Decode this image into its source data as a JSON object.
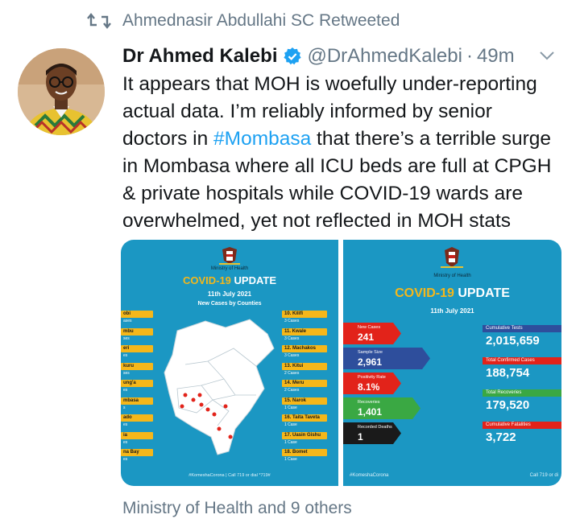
{
  "retweet": {
    "text": "Ahmednasir Abdullahi SC Retweeted"
  },
  "tweet": {
    "author_name": "Dr Ahmed Kalebi",
    "handle": "@DrAhmedKalebi",
    "separator": "·",
    "time": "49m",
    "lines": [
      "It appears that MOH is woefully under-reporting",
      "actual data. I’m reliably informed by senior",
      "in Mombasa where all ICU beds are full at CPGH",
      "& private hospitals while COVID-19 wards are",
      "overwhelmed, yet not reflected in MOH stats"
    ],
    "line3_prefix": "doctors in ",
    "hashtag": "#Mombasa",
    "line3_suffix": " that there’s a terrible surge"
  },
  "media_left": {
    "ministry": "Ministry of Health",
    "title_a": "COVID-19",
    "title_b": " UPDATE",
    "date": "11th July 2021",
    "subtitle": "New Cases by Counties",
    "left_counties": [
      {
        "name": "obi",
        "sub": "ases"
      },
      {
        "name": "mbu",
        "sub": "ses"
      },
      {
        "name": "eri",
        "sub": "es"
      },
      {
        "name": "kuru",
        "sub": "ses"
      },
      {
        "name": "ung'a",
        "sub": "es"
      },
      {
        "name": "mbasa",
        "sub": "s"
      },
      {
        "name": "ado",
        "sub": "es"
      },
      {
        "name": "ia",
        "sub": "es"
      },
      {
        "name": "na Bay",
        "sub": "es"
      }
    ],
    "right_counties": [
      {
        "name": "10. Kilifi",
        "sub": "3 Cases"
      },
      {
        "name": "11. Kwale",
        "sub": "3 Cases"
      },
      {
        "name": "12. Machakos",
        "sub": "3 Cases"
      },
      {
        "name": "13. Kitui",
        "sub": "2 Cases"
      },
      {
        "name": "14. Meru",
        "sub": "2 Cases"
      },
      {
        "name": "15. Narok",
        "sub": "1 Case"
      },
      {
        "name": "16. Taita Taveta",
        "sub": "1 Case"
      },
      {
        "name": "17. Uasin Gishu",
        "sub": "1 Case"
      },
      {
        "name": "18. Bomet",
        "sub": "1 Case"
      }
    ],
    "footer": "#KomeshaCorona | Call 719 or dial *719#"
  },
  "media_right": {
    "ministry": "Ministry of Health",
    "title_a": "COVID-19",
    "title_b": " UPDATE",
    "date": "11th July 2021",
    "left_stats": [
      {
        "label": "New Cases",
        "value": "241",
        "color": "#e2231a"
      },
      {
        "label": "Sample Size",
        "value": "2,961",
        "color": "#2e4e9c"
      },
      {
        "label": "Positivity Rate",
        "value": "8.1%",
        "color": "#e2231a"
      },
      {
        "label": "Recoveries",
        "value": "1,401",
        "color": "#3aa843"
      },
      {
        "label": "Recorded Deaths",
        "value": "1",
        "color": "#1a1a1a"
      }
    ],
    "right_stats": [
      {
        "label": "Cumulative Tests",
        "value": "2,015,659",
        "color": "#2e4e9c"
      },
      {
        "label": "Total Confirmed Cases",
        "value": "188,754",
        "color": "#e2231a"
      },
      {
        "label": "Total Recoveries",
        "value": "179,520",
        "color": "#3aa843"
      },
      {
        "label": "Cumulative Fatalities",
        "value": "3,722",
        "color": "#e2231a"
      }
    ],
    "footer_left": "#KomeshaCorona",
    "footer_right": "Call 719 or di"
  },
  "footer": {
    "text": "Ministry of Health and 9 others"
  },
  "colors": {
    "accent": "#1da1f2",
    "muted": "#657786",
    "card_blue": "#1b97c3",
    "yellow": "#f5b71a"
  }
}
